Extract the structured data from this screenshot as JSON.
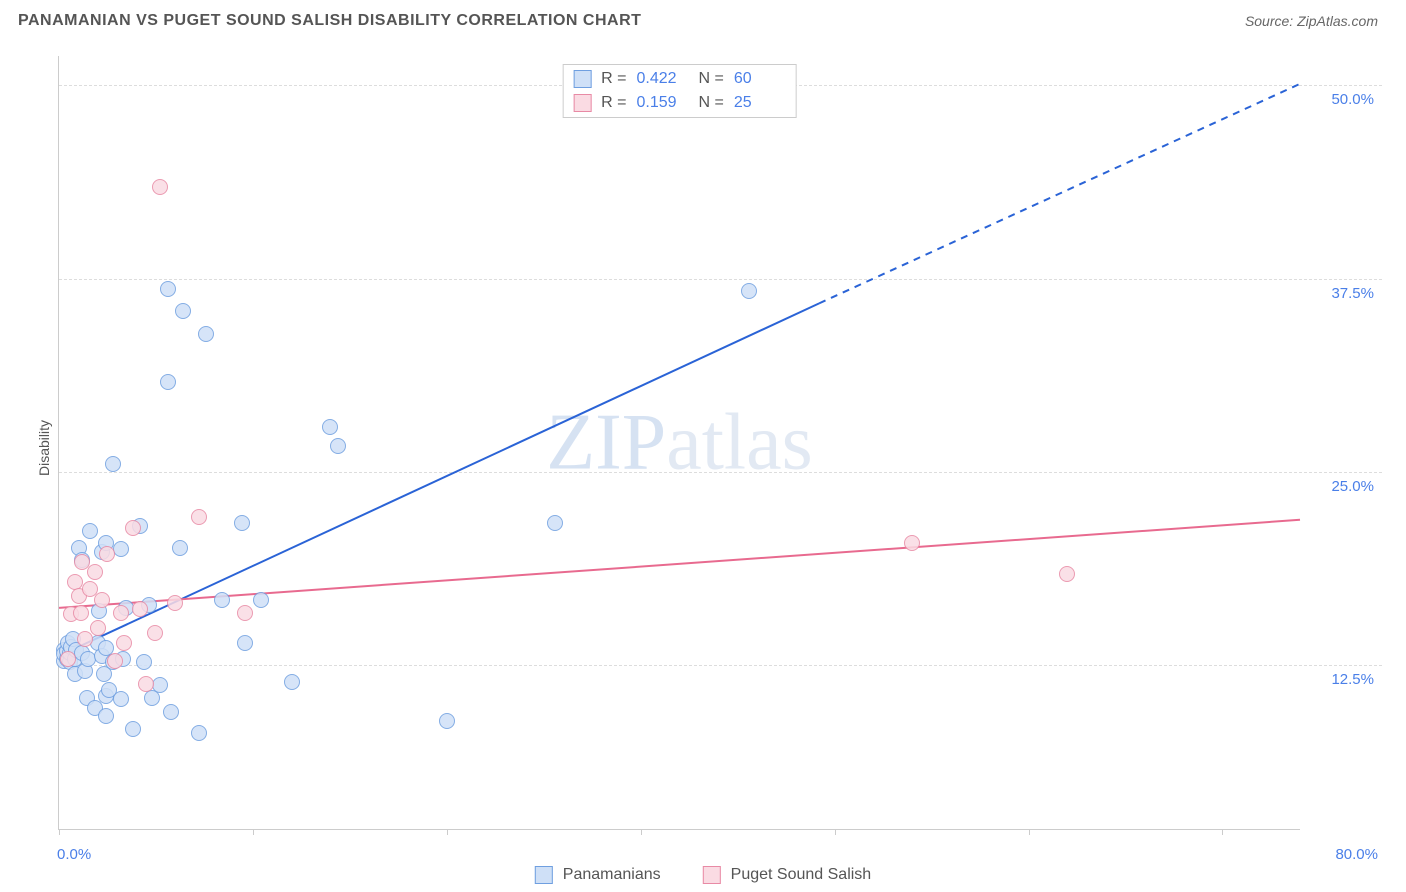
{
  "header": {
    "title": "PANAMANIAN VS PUGET SOUND SALISH DISABILITY CORRELATION CHART",
    "source_label": "Source: ZipAtlas.com"
  },
  "chart": {
    "type": "scatter",
    "ylabel": "Disability",
    "watermark": {
      "part1": "ZIP",
      "part2": "atlas"
    },
    "xlim": [
      0,
      80
    ],
    "ylim": [
      3,
      53
    ],
    "x_ticks_pct": [
      0,
      12.5,
      25,
      37.5,
      50,
      62.5,
      75
    ],
    "x_axis_labels": [
      {
        "text": "0.0%",
        "x": 0
      },
      {
        "text": "80.0%",
        "x": 80
      }
    ],
    "y_gridlines_pct": [
      13.6,
      26.1,
      38.6,
      51.1
    ],
    "y_axis_labels": [
      {
        "text": "12.5%",
        "y": 13.6
      },
      {
        "text": "25.0%",
        "y": 26.1
      },
      {
        "text": "37.5%",
        "y": 38.6
      },
      {
        "text": "50.0%",
        "y": 51.1
      }
    ],
    "grid_color": "#dddddd",
    "axis_color": "#cccccc",
    "background_color": "#ffffff",
    "tick_label_color": "#4a7fe8",
    "text_color": "#555555",
    "marker_radius": 8,
    "series": [
      {
        "name": "Panamanians",
        "marker_fill": "#cfe0f7",
        "marker_stroke": "#6f9fe0",
        "line_color": "#2a63d6",
        "line_width": 2,
        "legend": {
          "R": "0.422",
          "N": "60"
        },
        "trend_line": {
          "x1": 0,
          "y1": 14.2,
          "x2": 49,
          "y2": 37.0,
          "dashed_ext": {
            "x2": 80,
            "y2": 51.2
          }
        },
        "points": [
          [
            0.3,
            14.6
          ],
          [
            0.3,
            13.9
          ],
          [
            0.3,
            14.3
          ],
          [
            0.5,
            14.0
          ],
          [
            0.5,
            14.5
          ],
          [
            0.6,
            15.0
          ],
          [
            0.7,
            13.8
          ],
          [
            0.7,
            14.4
          ],
          [
            0.8,
            14.8
          ],
          [
            0.9,
            15.3
          ],
          [
            1.0,
            13.0
          ],
          [
            1.0,
            14.0
          ],
          [
            1.1,
            14.6
          ],
          [
            1.3,
            21.2
          ],
          [
            1.5,
            14.4
          ],
          [
            1.5,
            20.4
          ],
          [
            1.7,
            13.2
          ],
          [
            1.8,
            11.5
          ],
          [
            1.9,
            14.0
          ],
          [
            2.0,
            22.3
          ],
          [
            2.3,
            10.8
          ],
          [
            2.5,
            15.0
          ],
          [
            2.6,
            17.1
          ],
          [
            2.8,
            14.2
          ],
          [
            2.8,
            20.9
          ],
          [
            2.9,
            13.0
          ],
          [
            3.0,
            10.3
          ],
          [
            3.0,
            11.6
          ],
          [
            3.0,
            14.7
          ],
          [
            3.0,
            21.5
          ],
          [
            3.2,
            12.0
          ],
          [
            3.5,
            13.8
          ],
          [
            3.5,
            26.6
          ],
          [
            4.0,
            11.4
          ],
          [
            4.0,
            21.1
          ],
          [
            4.1,
            14.0
          ],
          [
            4.3,
            17.3
          ],
          [
            4.8,
            9.5
          ],
          [
            5.2,
            22.6
          ],
          [
            5.5,
            13.8
          ],
          [
            5.8,
            17.5
          ],
          [
            6.0,
            11.5
          ],
          [
            6.5,
            12.3
          ],
          [
            7.0,
            31.9
          ],
          [
            7.0,
            37.9
          ],
          [
            7.2,
            10.6
          ],
          [
            7.8,
            21.2
          ],
          [
            8.0,
            36.5
          ],
          [
            9.0,
            9.2
          ],
          [
            9.5,
            35.0
          ],
          [
            10.5,
            17.8
          ],
          [
            11.8,
            22.8
          ],
          [
            12.0,
            15.0
          ],
          [
            13.0,
            17.8
          ],
          [
            15.0,
            12.5
          ],
          [
            17.5,
            29.0
          ],
          [
            18.0,
            27.8
          ],
          [
            25.0,
            10.0
          ],
          [
            32.0,
            22.8
          ],
          [
            44.5,
            37.8
          ]
        ]
      },
      {
        "name": "Puget Sound Salish",
        "marker_fill": "#fadbe3",
        "marker_stroke": "#e88aa5",
        "line_color": "#e86a8f",
        "line_width": 2,
        "legend": {
          "R": "0.159",
          "N": "25"
        },
        "trend_line": {
          "x1": 0,
          "y1": 17.3,
          "x2": 80,
          "y2": 23.0
        },
        "points": [
          [
            0.6,
            14.0
          ],
          [
            0.8,
            16.9
          ],
          [
            1.0,
            19.0
          ],
          [
            1.3,
            18.1
          ],
          [
            1.4,
            17.0
          ],
          [
            1.5,
            20.3
          ],
          [
            1.7,
            15.3
          ],
          [
            2.0,
            18.5
          ],
          [
            2.3,
            19.6
          ],
          [
            2.5,
            16.0
          ],
          [
            2.8,
            17.8
          ],
          [
            3.1,
            20.8
          ],
          [
            3.6,
            13.9
          ],
          [
            4.0,
            17.0
          ],
          [
            4.2,
            15.0
          ],
          [
            4.8,
            22.5
          ],
          [
            5.2,
            17.2
          ],
          [
            5.6,
            12.4
          ],
          [
            6.2,
            15.7
          ],
          [
            6.5,
            44.5
          ],
          [
            7.5,
            17.6
          ],
          [
            9.0,
            23.2
          ],
          [
            12.0,
            17.0
          ],
          [
            55.0,
            21.5
          ],
          [
            65.0,
            19.5
          ]
        ]
      }
    ],
    "legend_top_labels": {
      "R": "R =",
      "N": "N ="
    },
    "legend_bottom": [
      {
        "label": "Panamanians",
        "series": 0
      },
      {
        "label": "Puget Sound Salish",
        "series": 1
      }
    ]
  }
}
